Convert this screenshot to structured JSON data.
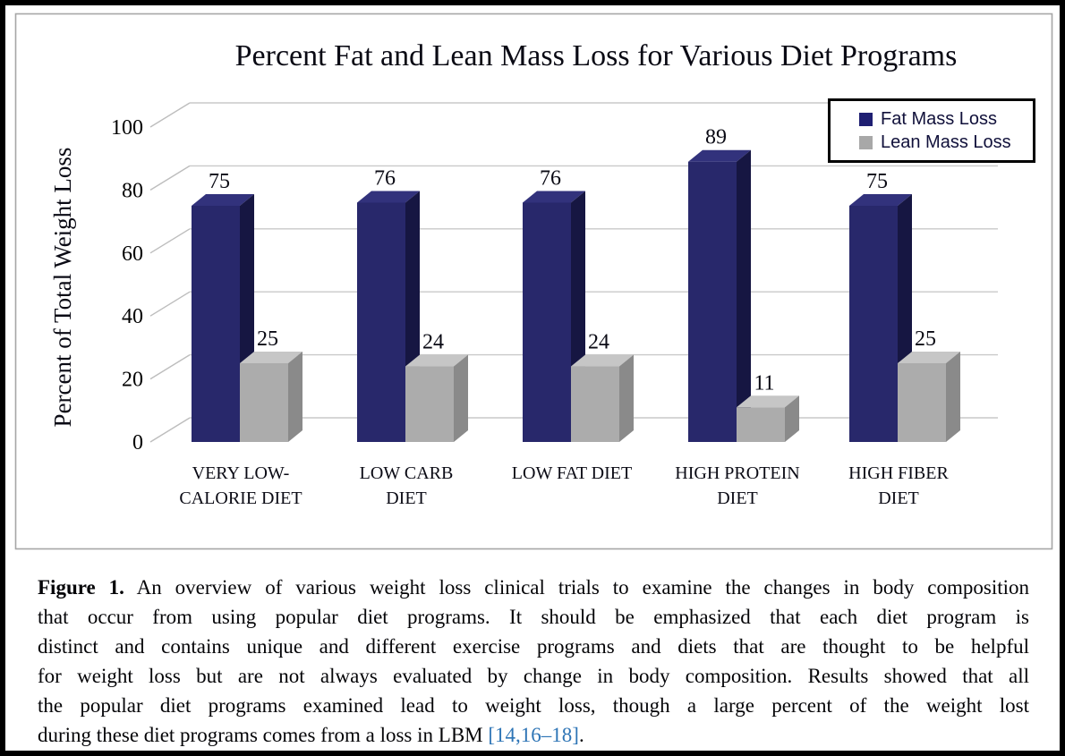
{
  "chart_data": {
    "type": "bar",
    "style": "3d-clustered-column",
    "title": "Percent Fat and Lean Mass Loss for Various Diet Programs",
    "xlabel": "",
    "ylabel": "Percent of Total Weight Loss",
    "ylim": [
      0,
      100
    ],
    "yticks": [
      0,
      20,
      40,
      60,
      80,
      100
    ],
    "grid": true,
    "legend_position": "top-right",
    "categories": [
      "VERY LOW-CALORIE DIET",
      "LOW CARB DIET",
      "LOW FAT DIET",
      "HIGH PROTEIN DIET",
      "HIGH FIBER DIET"
    ],
    "category_label_lines": [
      [
        "VERY LOW-",
        "CALORIE DIET"
      ],
      [
        "LOW CARB",
        "DIET"
      ],
      [
        "LOW FAT DIET"
      ],
      [
        "HIGH PROTEIN",
        "DIET"
      ],
      [
        "HIGH FIBER",
        "DIET"
      ]
    ],
    "series": [
      {
        "name": "Fat Mass Loss",
        "values": [
          75,
          76,
          76,
          89,
          75
        ],
        "color_front": "#28286b",
        "color_top": "#32327c",
        "color_side": "#161642",
        "swatch": "#1f1f72"
      },
      {
        "name": "Lean Mass Loss",
        "values": [
          25,
          24,
          24,
          11,
          25
        ],
        "color_front": "#acacac",
        "color_top": "#c6c6c6",
        "color_side": "#8a8a8a",
        "swatch": "#a8a8a8"
      }
    ],
    "colors": {
      "gridline": "#c9c9c9",
      "axis_diagonal": "#bdbdbd",
      "plot_border": "#a6a6a6",
      "tick_text": "#000000",
      "data_label_text": "#0a0a14"
    }
  },
  "figure": {
    "caption_label": "Figure 1.",
    "caption_lines": [
      "An overview of various weight loss clinical trials to examine the changes in body composition",
      "that occur from using popular diet programs.  It should be emphasized that each diet program is",
      "distinct and contains unique and different exercise programs and diets that are thought to be helpful",
      "for weight loss but are not always evaluated by change in body composition. Results showed that all",
      "the popular diet programs examined lead to weight loss, though a large percent of the weight lost"
    ],
    "caption_last_pre": "during these diet programs comes from a loss in LBM ",
    "caption_citation": "[14,16–18]",
    "caption_last_post": "."
  }
}
